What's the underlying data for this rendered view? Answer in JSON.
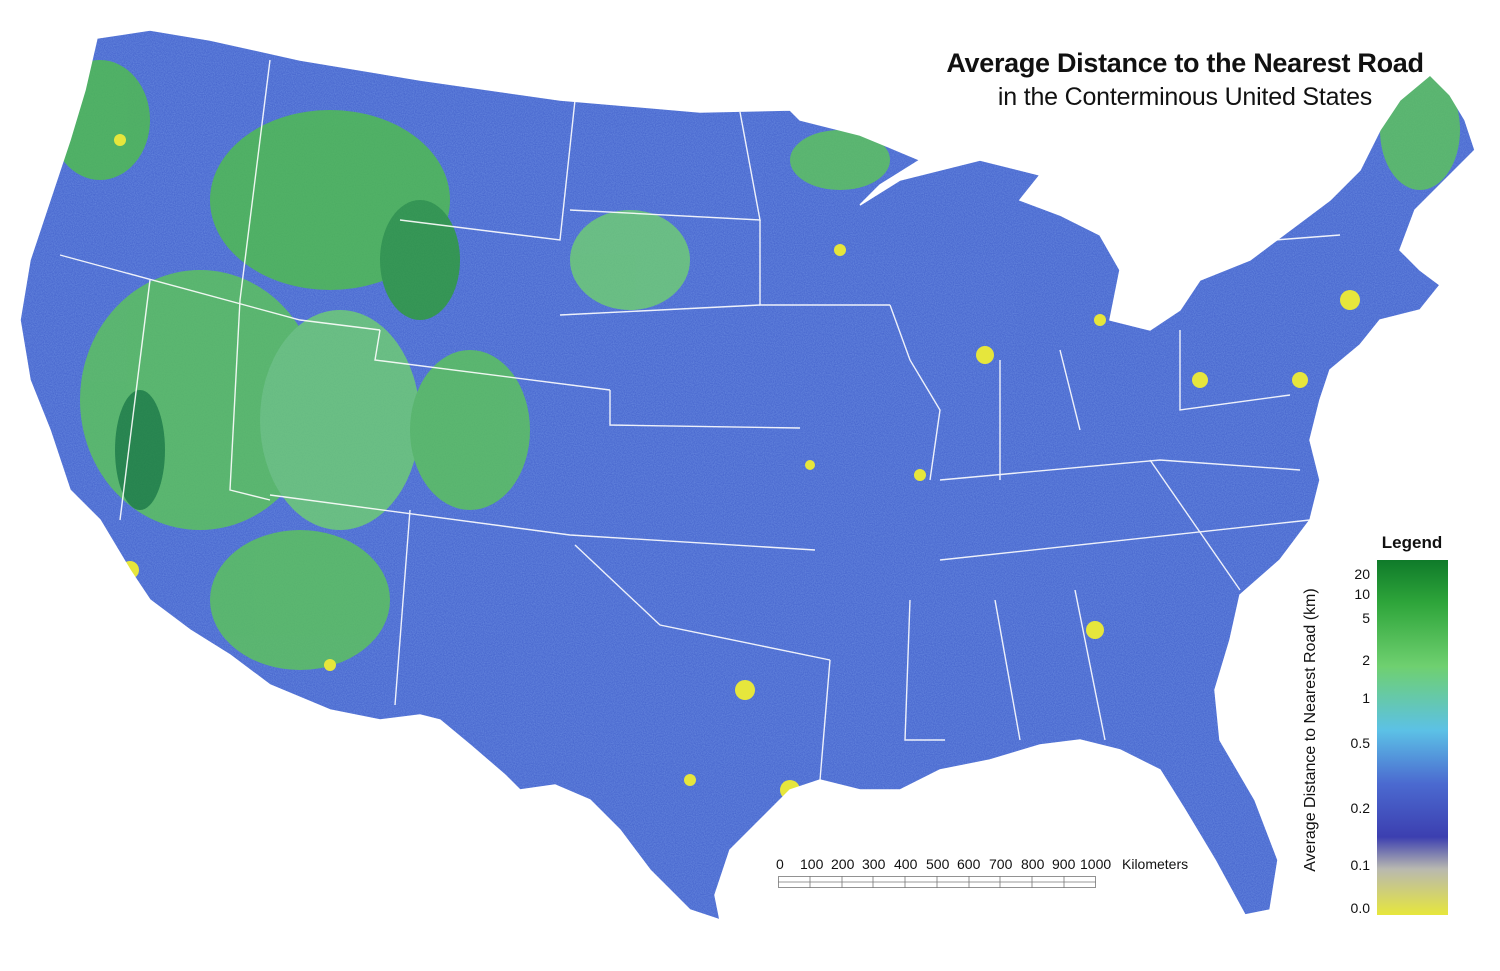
{
  "title": "Average Distance to the Nearest Road",
  "subtitle": "in the Conterminous United States",
  "legend": {
    "title": "Legend",
    "axis_label": "Average Distance to Nearest Road (km)",
    "ticks": [
      "20",
      "10",
      "5",
      "2",
      "1",
      "0.5",
      "0.2",
      "0.1",
      "0.0"
    ],
    "colors": {
      "far": "#0f7a2a",
      "green": "#3fbf3a",
      "light_green": "#6fd070",
      "cyan": "#5cc1e6",
      "blue": "#4b6ad0",
      "dark_blue": "#3c3fb0",
      "gray": "#b8b8b0",
      "near_yellow": "#e6e63c"
    }
  },
  "scale_bar": {
    "labels": [
      "0",
      "100",
      "200",
      "300",
      "400",
      "500",
      "600",
      "700",
      "800",
      "900",
      "1000"
    ],
    "unit": "Kilometers"
  }
}
